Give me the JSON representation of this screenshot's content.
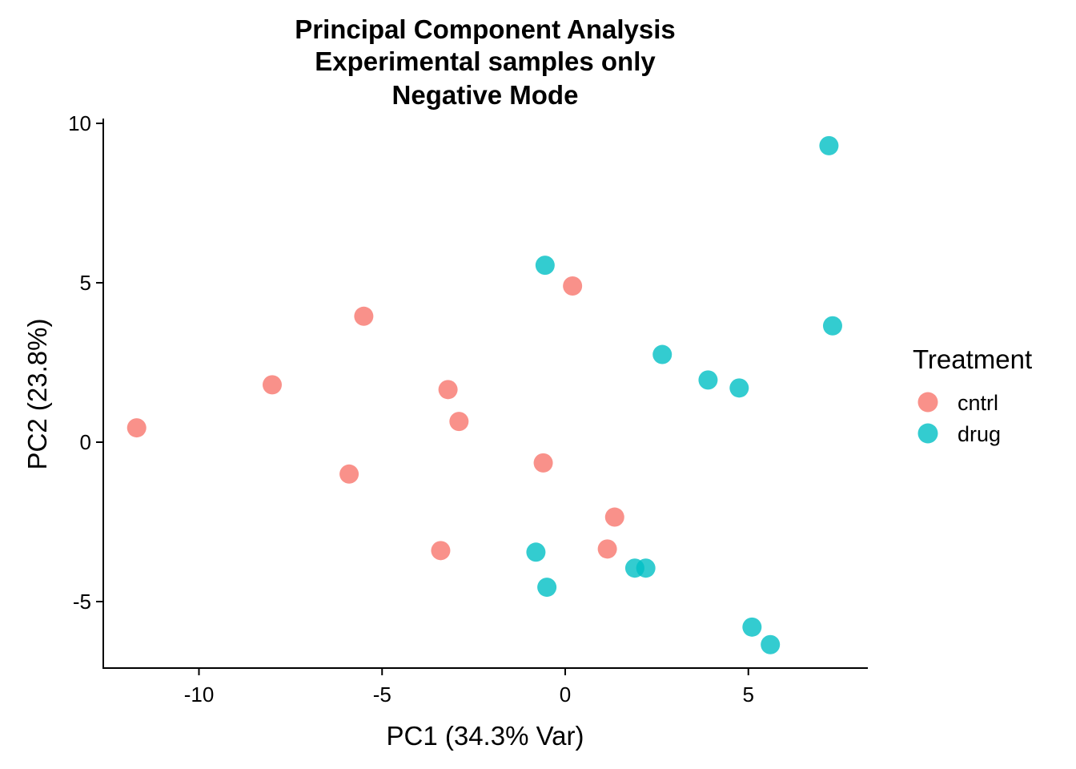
{
  "chart_data": {
    "type": "scatter",
    "title": [
      "Principal Component Analysis",
      "Experimental samples only",
      "Negative Mode"
    ],
    "xlabel": "PC1 (34.3% Var)",
    "ylabel": "PC2 (23.8%)",
    "xlim": [
      -12.5,
      8.3
    ],
    "ylim": [
      -7.1,
      10.1
    ],
    "xticks": [
      -10,
      -5,
      0,
      5
    ],
    "xtick_labels": [
      "-10",
      "-5",
      "0",
      "5"
    ],
    "yticks": [
      -5,
      0,
      5,
      10
    ],
    "ytick_labels": [
      "-5",
      "0",
      "5",
      "10"
    ],
    "grid": false,
    "legend": {
      "title": "Treatment",
      "position": "right"
    },
    "series": [
      {
        "name": "cntrl",
        "color": "#F8766D",
        "points": [
          {
            "x": -11.7,
            "y": 0.45
          },
          {
            "x": -8.0,
            "y": 1.8
          },
          {
            "x": -5.5,
            "y": 3.95
          },
          {
            "x": -5.9,
            "y": -1.0
          },
          {
            "x": -3.4,
            "y": -3.4
          },
          {
            "x": -3.2,
            "y": 1.65
          },
          {
            "x": -2.9,
            "y": 0.65
          },
          {
            "x": -0.6,
            "y": -0.65
          },
          {
            "x": 0.2,
            "y": 4.9
          },
          {
            "x": 1.35,
            "y": -2.35
          },
          {
            "x": 1.15,
            "y": -3.35
          }
        ]
      },
      {
        "name": "drug",
        "color": "#00BFC4",
        "points": [
          {
            "x": -0.55,
            "y": 5.55
          },
          {
            "x": -0.8,
            "y": -3.45
          },
          {
            "x": -0.5,
            "y": -4.55
          },
          {
            "x": 1.9,
            "y": -3.95
          },
          {
            "x": 2.2,
            "y": -3.95
          },
          {
            "x": 2.65,
            "y": 2.75
          },
          {
            "x": 3.9,
            "y": 1.95
          },
          {
            "x": 4.75,
            "y": 1.7
          },
          {
            "x": 5.1,
            "y": -5.8
          },
          {
            "x": 5.6,
            "y": -6.35
          },
          {
            "x": 7.2,
            "y": 9.3
          },
          {
            "x": 7.3,
            "y": 3.65
          }
        ]
      }
    ]
  }
}
